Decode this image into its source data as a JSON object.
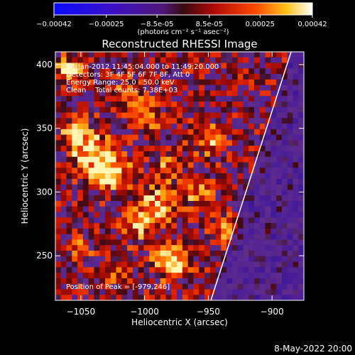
{
  "chart_data": {
    "type": "heatmap",
    "title": "Reconstructed RHESSI Image",
    "xlabel": "Heliocentric X (arcsec)",
    "ylabel": "Heliocentric Y (arcsec)",
    "xlim": [
      -1070,
      -875
    ],
    "ylim": [
      215,
      410
    ],
    "x_ticks": [
      -1050,
      -1000,
      -950,
      -900
    ],
    "x_tick_labels": [
      "−1050",
      "−1000",
      "−950",
      "−900"
    ],
    "y_ticks": [
      250,
      300,
      350,
      400
    ],
    "y_tick_labels": [
      "250",
      "300",
      "350",
      "400"
    ],
    "colorbar": {
      "ticks": [
        -0.00042,
        -0.00025,
        -8.5e-05,
        8.5e-05,
        0.00025,
        0.00042
      ],
      "tick_labels": [
        "−0.00042",
        "−0.00025",
        "−8.5e-05",
        "8.5e-05",
        "0.00025",
        "0.00042"
      ],
      "unit_label": "(photons cm⁻² s⁻¹ asec⁻²)",
      "range": [
        -0.00042,
        0.00042
      ]
    },
    "annotations": [
      "14-Jan-2012 11:45:04.000 to 11:49:20.000",
      "Detectors: 3F 4F 5F 6F 7F 8F, Att 0",
      "Energy Range: 25.0 - 50.0 keV",
      "Clean    Total counts: 7.38E+03"
    ],
    "peak_label": "Position of Peak = [-979,246]",
    "peak": {
      "x": -979,
      "y": 246
    },
    "limb": {
      "from": [
        -948,
        215
      ],
      "to": [
        -885,
        410
      ]
    },
    "grid": false
  },
  "footer": {
    "date": "8-May-2022 20:00"
  },
  "colors": {
    "background": "#000000",
    "frame": "#ffffff",
    "limb": "#ffffff"
  }
}
